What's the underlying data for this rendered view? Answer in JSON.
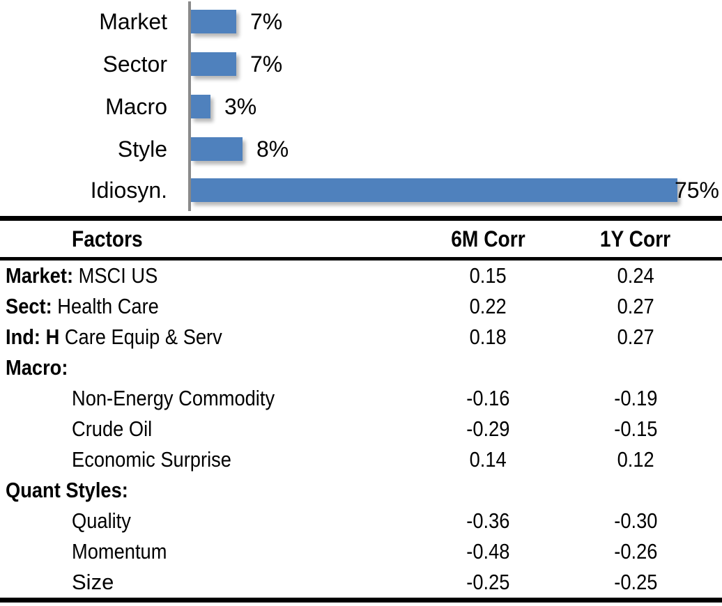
{
  "colors": {
    "bar": "#4f81bd",
    "axis": "#8a8a8a",
    "text": "#000000",
    "rule": "#000000"
  },
  "chart_data": {
    "type": "bar",
    "orientation": "horizontal",
    "title": "",
    "xlabel": "",
    "ylabel": "",
    "legend": false,
    "grid": false,
    "xlim": [
      0,
      80
    ],
    "categories": [
      "Market",
      "Sector",
      "Macro",
      "Style",
      "Idiosyn."
    ],
    "values": [
      7,
      7,
      3,
      8,
      75
    ],
    "labels": [
      "7%",
      "7%",
      "3%",
      "8%",
      "75%"
    ]
  },
  "table": {
    "headers": [
      "Factors",
      "6M Corr",
      "1Y Corr"
    ],
    "rows": [
      {
        "prefix": "Market:",
        "label": " MSCI US",
        "c6": "0.15",
        "c1": "0.24",
        "indent": 0,
        "narrow": true
      },
      {
        "prefix": "Sect:",
        "label": " Health Care",
        "c6": "0.22",
        "c1": "0.27",
        "indent": 0,
        "narrow": true
      },
      {
        "prefix": "Ind: H",
        "label": " Care Equip & Serv",
        "c6": "0.18",
        "c1": "0.27",
        "indent": 0,
        "narrow": true
      },
      {
        "prefix": "Macro:",
        "label": "",
        "c6": "",
        "c1": "",
        "indent": 0,
        "narrow": true
      },
      {
        "prefix": "",
        "label": "Non-Energy Commodity",
        "c6": "-0.16",
        "c1": "-0.19",
        "indent": 1,
        "narrow": true
      },
      {
        "prefix": "",
        "label": "Crude Oil",
        "c6": "-0.29",
        "c1": "-0.15",
        "indent": 1,
        "narrow": true
      },
      {
        "prefix": "",
        "label": "Economic Surprise",
        "c6": "0.14",
        "c1": "0.12",
        "indent": 1,
        "narrow": true
      },
      {
        "prefix": "Quant Styles:",
        "label": "",
        "c6": "",
        "c1": "",
        "indent": 0,
        "narrow": true
      },
      {
        "prefix": "",
        "label": "Quality",
        "c6": "-0.36",
        "c1": "-0.30",
        "indent": 1,
        "narrow": true
      },
      {
        "prefix": "",
        "label": "Momentum",
        "c6": "-0.48",
        "c1": "-0.26",
        "indent": 1,
        "narrow": true
      },
      {
        "prefix": "",
        "label": "Size",
        "c6": "-0.25",
        "c1": "-0.25",
        "indent": 1,
        "narrow": false
      }
    ]
  }
}
